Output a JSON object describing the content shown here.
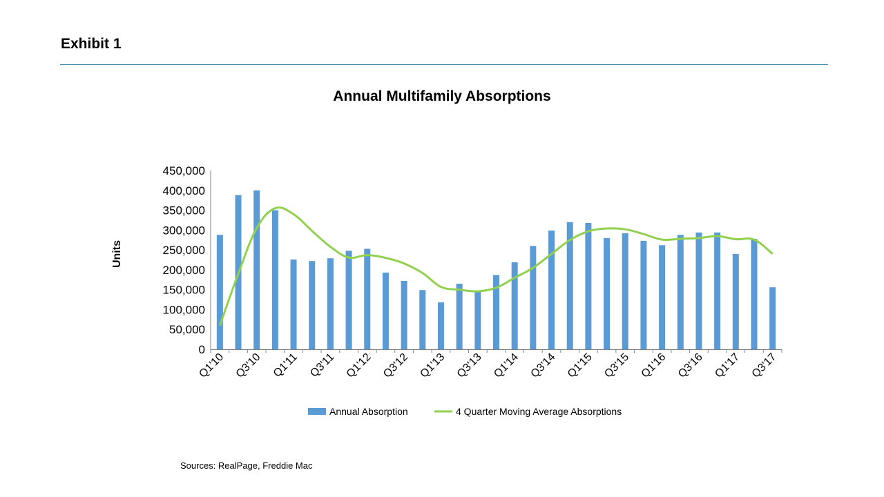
{
  "header": {
    "exhibit_title": "Exhibit 1"
  },
  "footer": {
    "sources": "Sources:  RealPage, Freddie Mac"
  },
  "colors": {
    "bar": "#5b9bd5",
    "line": "#92d050",
    "rule": "#4a8fb3"
  },
  "chart_data": {
    "type": "bar",
    "title": "Annual Multifamily Absorptions",
    "xlabel": "",
    "ylabel": "Units",
    "ylim": [
      0,
      450000
    ],
    "y_ticks": [
      "450,000",
      "400,000",
      "350,000",
      "300,000",
      "250,000",
      "200,000",
      "150,000",
      "100,000",
      "50,000",
      "0"
    ],
    "y_tick_values": [
      450000,
      400000,
      350000,
      300000,
      250000,
      200000,
      150000,
      100000,
      50000,
      0
    ],
    "categories": [
      "Q1'10",
      "Q2'10",
      "Q3'10",
      "Q4'10",
      "Q1'11",
      "Q2'11",
      "Q3'11",
      "Q4'11",
      "Q1'12",
      "Q2'12",
      "Q3'12",
      "Q4'12",
      "Q1'13",
      "Q2'13",
      "Q3'13",
      "Q4'13",
      "Q1'14",
      "Q2'14",
      "Q3'14",
      "Q4'14",
      "Q1'15",
      "Q2'15",
      "Q3'15",
      "Q4'15",
      "Q1'16",
      "Q2'16",
      "Q3'16",
      "Q4'16",
      "Q1'17",
      "Q2'17",
      "Q3'17"
    ],
    "x_tick_labels": [
      "Q1'10",
      "Q3'10",
      "Q1'11",
      "Q3'11",
      "Q1'12",
      "Q3'12",
      "Q1'13",
      "Q3'13",
      "Q1'14",
      "Q3'14",
      "Q1'15",
      "Q3'15",
      "Q1'16",
      "Q3'16",
      "Q1'17",
      "Q3'17"
    ],
    "legend_placement": "bottom",
    "grid": false,
    "series": [
      {
        "name": "Annual Absorption",
        "type": "bar",
        "values": [
          288000,
          388000,
          400000,
          350000,
          226000,
          222000,
          229000,
          248000,
          253000,
          193000,
          172000,
          149000,
          118000,
          165000,
          145000,
          187000,
          219000,
          260000,
          299000,
          320000,
          318000,
          280000,
          292000,
          273000,
          262000,
          288000,
          294000,
          294000,
          240000,
          278000,
          156000
        ]
      },
      {
        "name": "4 Quarter Moving Average Absorptions",
        "type": "line",
        "values": [
          60000,
          190000,
          305000,
          355000,
          340000,
          298000,
          258000,
          231000,
          237000,
          230000,
          216000,
          192000,
          157000,
          150000,
          146000,
          155000,
          180000,
          205000,
          240000,
          275000,
          297000,
          304000,
          302000,
          290000,
          276000,
          278000,
          280000,
          285000,
          277000,
          276000,
          240000
        ]
      }
    ]
  }
}
